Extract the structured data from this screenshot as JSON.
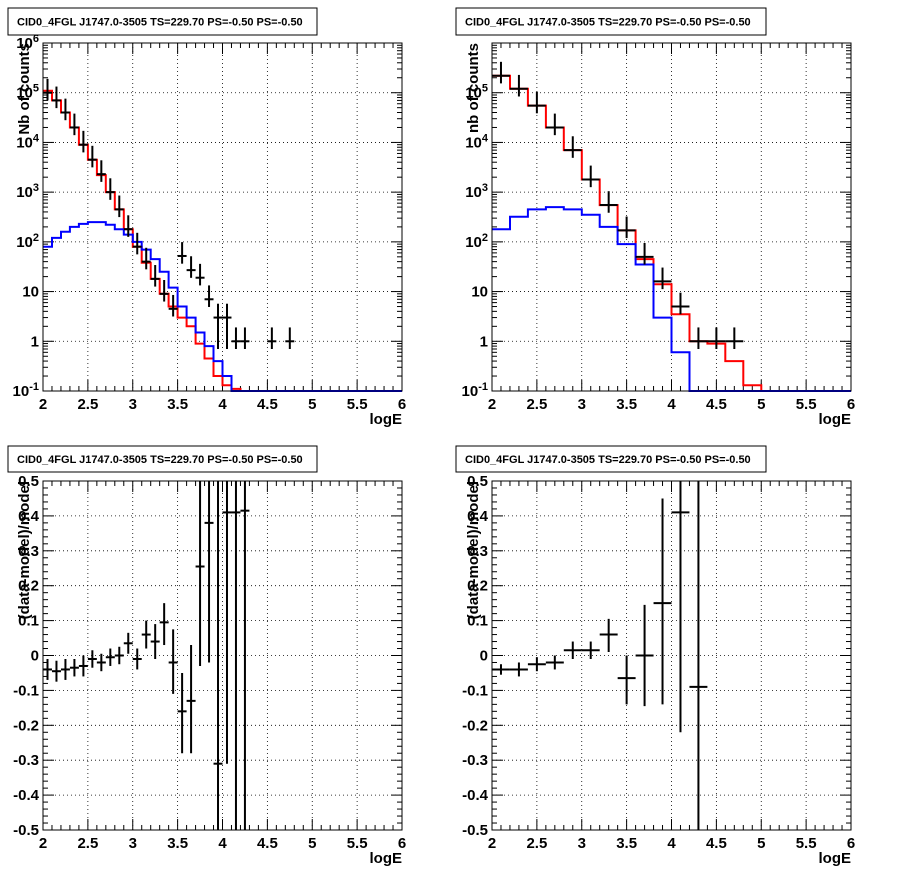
{
  "colors": {
    "data": "#000000",
    "model_total": "#ff0000",
    "model_source": "#0000ff",
    "grid": "#000000"
  },
  "chart_data": [
    {
      "type": "step-histogram",
      "title": "CID0_4FGL J1747.0-3505 TS=229.70 PS=-0.50 PS=-0.50",
      "xlabel": "logE",
      "ylabel": "Nb of counts",
      "xlim": [
        2,
        6
      ],
      "ylim": [
        0.1,
        1000000
      ],
      "yscale": "log",
      "grid": true,
      "xticks": [
        "2",
        "2.5",
        "3",
        "3.5",
        "4",
        "4.5",
        "5",
        "5.5",
        "6"
      ],
      "yticks": [
        "10^-1",
        "1",
        "10",
        "10^2",
        "10^3",
        "10^4",
        "10^5",
        "10^6"
      ],
      "bin_edges": [
        2,
        2.1,
        2.2,
        2.3,
        2.4,
        2.5,
        2.6,
        2.7,
        2.8,
        2.9,
        3,
        3.1,
        3.2,
        3.3,
        3.4,
        3.5,
        3.6,
        3.7,
        3.8,
        3.9,
        4,
        4.1,
        4.2,
        4.3,
        4.4,
        4.5,
        4.6,
        4.7,
        4.8,
        4.9,
        5,
        5.1,
        5.2,
        5.3,
        5.4,
        5.5,
        5.6,
        5.7,
        5.8,
        5.9,
        6
      ],
      "series": [
        {
          "name": "",
          "role": "model_total",
          "values": [
            110000,
            70000,
            40000,
            20000,
            9000,
            4500,
            2200,
            1000,
            450,
            180,
            80,
            38,
            18,
            9,
            5,
            3,
            2,
            0.9,
            0.45,
            0.2,
            0.13,
            0.11,
            0.1,
            0.1,
            0.1,
            0.1,
            0.1,
            0.1,
            0.1,
            0.1,
            0.1,
            0.1,
            0.1,
            0.1,
            0.1,
            0.1,
            0.1,
            0.1,
            0.1,
            0.1
          ]
        },
        {
          "name": "",
          "role": "model_source",
          "values": [
            80,
            120,
            160,
            200,
            230,
            250,
            250,
            220,
            180,
            140,
            100,
            70,
            45,
            25,
            12,
            5,
            3,
            1.5,
            0.8,
            0.4,
            0.2,
            0.1,
            0.1,
            0.1,
            0.1,
            0.1,
            0.1,
            0.1,
            0.1,
            0.1,
            0.1,
            0.1,
            0.1,
            0.1,
            0.1,
            0.1,
            0.1,
            0.1,
            0.1,
            0.1
          ]
        },
        {
          "name": "",
          "role": "data",
          "points": [
            {
              "x": 2.05,
              "y": 100000
            },
            {
              "x": 2.15,
              "y": 70000
            },
            {
              "x": 2.25,
              "y": 40000
            },
            {
              "x": 2.35,
              "y": 20000
            },
            {
              "x": 2.45,
              "y": 9000
            },
            {
              "x": 2.55,
              "y": 4500
            },
            {
              "x": 2.65,
              "y": 2300
            },
            {
              "x": 2.75,
              "y": 1000
            },
            {
              "x": 2.85,
              "y": 450
            },
            {
              "x": 2.95,
              "y": 180
            },
            {
              "x": 3.05,
              "y": 80
            },
            {
              "x": 3.15,
              "y": 40
            },
            {
              "x": 3.25,
              "y": 18
            },
            {
              "x": 3.35,
              "y": 9
            },
            {
              "x": 3.45,
              "y": 4.5
            },
            {
              "x": 3.55,
              "y": 52
            },
            {
              "x": 3.65,
              "y": 27
            },
            {
              "x": 3.75,
              "y": 19
            },
            {
              "x": 3.85,
              "y": 7
            },
            {
              "x": 3.95,
              "y": 3,
              "ylo": 0.7
            },
            {
              "x": 4.05,
              "y": 3,
              "ylo": 0.7
            },
            {
              "x": 4.15,
              "y": 1
            },
            {
              "x": 4.25,
              "y": 1
            },
            {
              "x": 4.55,
              "y": 1
            },
            {
              "x": 4.75,
              "y": 1
            }
          ]
        }
      ]
    },
    {
      "type": "step-histogram",
      "title": "CID0_4FGL J1747.0-3505 TS=229.70 PS=-0.50 PS=-0.50",
      "xlabel": "logE",
      "ylabel": "nb of counts",
      "xlim": [
        2,
        6
      ],
      "ylim": [
        0.1,
        1000000
      ],
      "yscale": "log",
      "grid": true,
      "xticks": [
        "2",
        "2.5",
        "3",
        "3.5",
        "4",
        "4.5",
        "5",
        "5.5",
        "6"
      ],
      "yticks": [
        "10^-1",
        "1",
        "10",
        "10^2",
        "10^3",
        "10^4",
        "10^5"
      ],
      "bin_edges": [
        2,
        2.2,
        2.4,
        2.6,
        2.8,
        3,
        3.2,
        3.4,
        3.6,
        3.8,
        4,
        4.2,
        4.4,
        4.6,
        4.8,
        5,
        5.2,
        5.4,
        5.6,
        5.8,
        6
      ],
      "series": [
        {
          "name": "",
          "role": "model_total",
          "values": [
            220000,
            120000,
            55000,
            20000,
            7000,
            1800,
            550,
            170,
            45,
            14,
            3.5,
            1,
            0.9,
            0.4,
            0.13,
            0.1,
            0.1,
            0.1,
            0.1,
            0.1
          ]
        },
        {
          "name": "",
          "role": "model_source",
          "values": [
            180,
            320,
            450,
            500,
            450,
            350,
            200,
            90,
            35,
            3,
            0.6,
            0.1,
            0.1,
            0.1,
            0.1,
            0.1,
            0.1,
            0.1,
            0.1,
            0.1
          ]
        },
        {
          "name": "",
          "role": "data",
          "points": [
            {
              "x": 2.1,
              "y": 220000
            },
            {
              "x": 2.3,
              "y": 120000
            },
            {
              "x": 2.5,
              "y": 55000
            },
            {
              "x": 2.7,
              "y": 20000
            },
            {
              "x": 2.9,
              "y": 7000
            },
            {
              "x": 3.1,
              "y": 1800
            },
            {
              "x": 3.3,
              "y": 550
            },
            {
              "x": 3.5,
              "y": 170
            },
            {
              "x": 3.7,
              "y": 50
            },
            {
              "x": 3.9,
              "y": 16
            },
            {
              "x": 4.1,
              "y": 5
            },
            {
              "x": 4.3,
              "y": 1
            },
            {
              "x": 4.5,
              "y": 1
            },
            {
              "x": 4.7,
              "y": 1
            }
          ]
        }
      ]
    },
    {
      "type": "scatter-errorbar",
      "title": "CID0_4FGL J1747.0-3505 TS=229.70 PS=-0.50 PS=-0.50",
      "xlabel": "logE",
      "ylabel": "(data-model)/model",
      "xlim": [
        2,
        6
      ],
      "ylim": [
        -0.5,
        0.5
      ],
      "grid": true,
      "xticks": [
        "2",
        "2.5",
        "3",
        "3.5",
        "4",
        "4.5",
        "5",
        "5.5",
        "6"
      ],
      "yticks": [
        "-0.5",
        "-0.4",
        "-0.3",
        "-0.2",
        "-0.1",
        "0",
        "0.1",
        "0.2",
        "0.3",
        "0.4",
        "0.5"
      ],
      "points": [
        {
          "x": 2.05,
          "y": -0.04,
          "ylo": -0.07,
          "yhi": -0.01
        },
        {
          "x": 2.15,
          "y": -0.045,
          "ylo": -0.075,
          "yhi": -0.015
        },
        {
          "x": 2.25,
          "y": -0.04,
          "ylo": -0.07,
          "yhi": -0.01
        },
        {
          "x": 2.35,
          "y": -0.035,
          "ylo": -0.06,
          "yhi": -0.01
        },
        {
          "x": 2.45,
          "y": -0.03,
          "ylo": -0.06,
          "yhi": 0.0
        },
        {
          "x": 2.55,
          "y": -0.01,
          "ylo": -0.035,
          "yhi": 0.015
        },
        {
          "x": 2.65,
          "y": -0.02,
          "ylo": -0.045,
          "yhi": 0.005
        },
        {
          "x": 2.75,
          "y": -0.005,
          "ylo": -0.03,
          "yhi": 0.02
        },
        {
          "x": 2.85,
          "y": 0.0,
          "ylo": -0.025,
          "yhi": 0.025
        },
        {
          "x": 2.95,
          "y": 0.035,
          "ylo": 0.005,
          "yhi": 0.065
        },
        {
          "x": 3.05,
          "y": -0.01,
          "ylo": -0.04,
          "yhi": 0.02
        },
        {
          "x": 3.15,
          "y": 0.06,
          "ylo": 0.02,
          "yhi": 0.1
        },
        {
          "x": 3.25,
          "y": 0.04,
          "ylo": -0.01,
          "yhi": 0.09
        },
        {
          "x": 3.35,
          "y": 0.095,
          "ylo": 0.03,
          "yhi": 0.15
        },
        {
          "x": 3.45,
          "y": -0.02,
          "ylo": -0.11,
          "yhi": 0.075
        },
        {
          "x": 3.55,
          "y": -0.16,
          "ylo": -0.28,
          "yhi": -0.05
        },
        {
          "x": 3.65,
          "y": -0.13,
          "ylo": -0.28,
          "yhi": 0.03
        },
        {
          "x": 3.75,
          "y": 0.255,
          "ylo": -0.03,
          "yhi": 0.5
        },
        {
          "x": 3.85,
          "y": 0.38,
          "ylo": -0.02,
          "yhi": 0.5
        },
        {
          "x": 3.95,
          "y": -0.31,
          "ylo": -0.5,
          "yhi": 0.5
        },
        {
          "x": 4.05,
          "y": 0.41,
          "ylo": -0.31,
          "yhi": 0.5
        },
        {
          "x": 4.15,
          "y": 0.41,
          "ylo": -0.5,
          "yhi": 0.5
        },
        {
          "x": 4.25,
          "y": 0.415,
          "ylo": -0.5,
          "yhi": 0.5
        }
      ]
    },
    {
      "type": "scatter-errorbar",
      "title": "CID0_4FGL J1747.0-3505 TS=229.70 PS=-0.50 PS=-0.50",
      "xlabel": "logE",
      "ylabel": "(data-model)/model",
      "xlim": [
        2,
        6
      ],
      "ylim": [
        -0.5,
        0.5
      ],
      "grid": true,
      "xticks": [
        "2",
        "2.5",
        "3",
        "3.5",
        "4",
        "4.5",
        "5",
        "5.5",
        "6"
      ],
      "yticks": [
        "-0.5",
        "-0.4",
        "-0.3",
        "-0.2",
        "-0.1",
        "0",
        "0.1",
        "0.2",
        "0.3",
        "0.4",
        "0.5"
      ],
      "points": [
        {
          "x": 2.1,
          "y": -0.04,
          "ylo": -0.055,
          "yhi": -0.025
        },
        {
          "x": 2.3,
          "y": -0.04,
          "ylo": -0.06,
          "yhi": -0.02
        },
        {
          "x": 2.5,
          "y": -0.025,
          "ylo": -0.045,
          "yhi": -0.005
        },
        {
          "x": 2.7,
          "y": -0.02,
          "ylo": -0.04,
          "yhi": 0.0
        },
        {
          "x": 2.9,
          "y": 0.015,
          "ylo": -0.01,
          "yhi": 0.04
        },
        {
          "x": 3.1,
          "y": 0.015,
          "ylo": -0.01,
          "yhi": 0.04
        },
        {
          "x": 3.3,
          "y": 0.06,
          "ylo": 0.01,
          "yhi": 0.105
        },
        {
          "x": 3.5,
          "y": -0.065,
          "ylo": -0.14,
          "yhi": 0.0
        },
        {
          "x": 3.7,
          "y": 0.0,
          "ylo": -0.145,
          "yhi": 0.145
        },
        {
          "x": 3.9,
          "y": 0.15,
          "ylo": -0.14,
          "yhi": 0.45
        },
        {
          "x": 4.1,
          "y": 0.41,
          "ylo": -0.22,
          "yhi": 0.5
        },
        {
          "x": 4.3,
          "y": -0.09,
          "ylo": -0.5,
          "yhi": 0.5
        }
      ]
    }
  ]
}
